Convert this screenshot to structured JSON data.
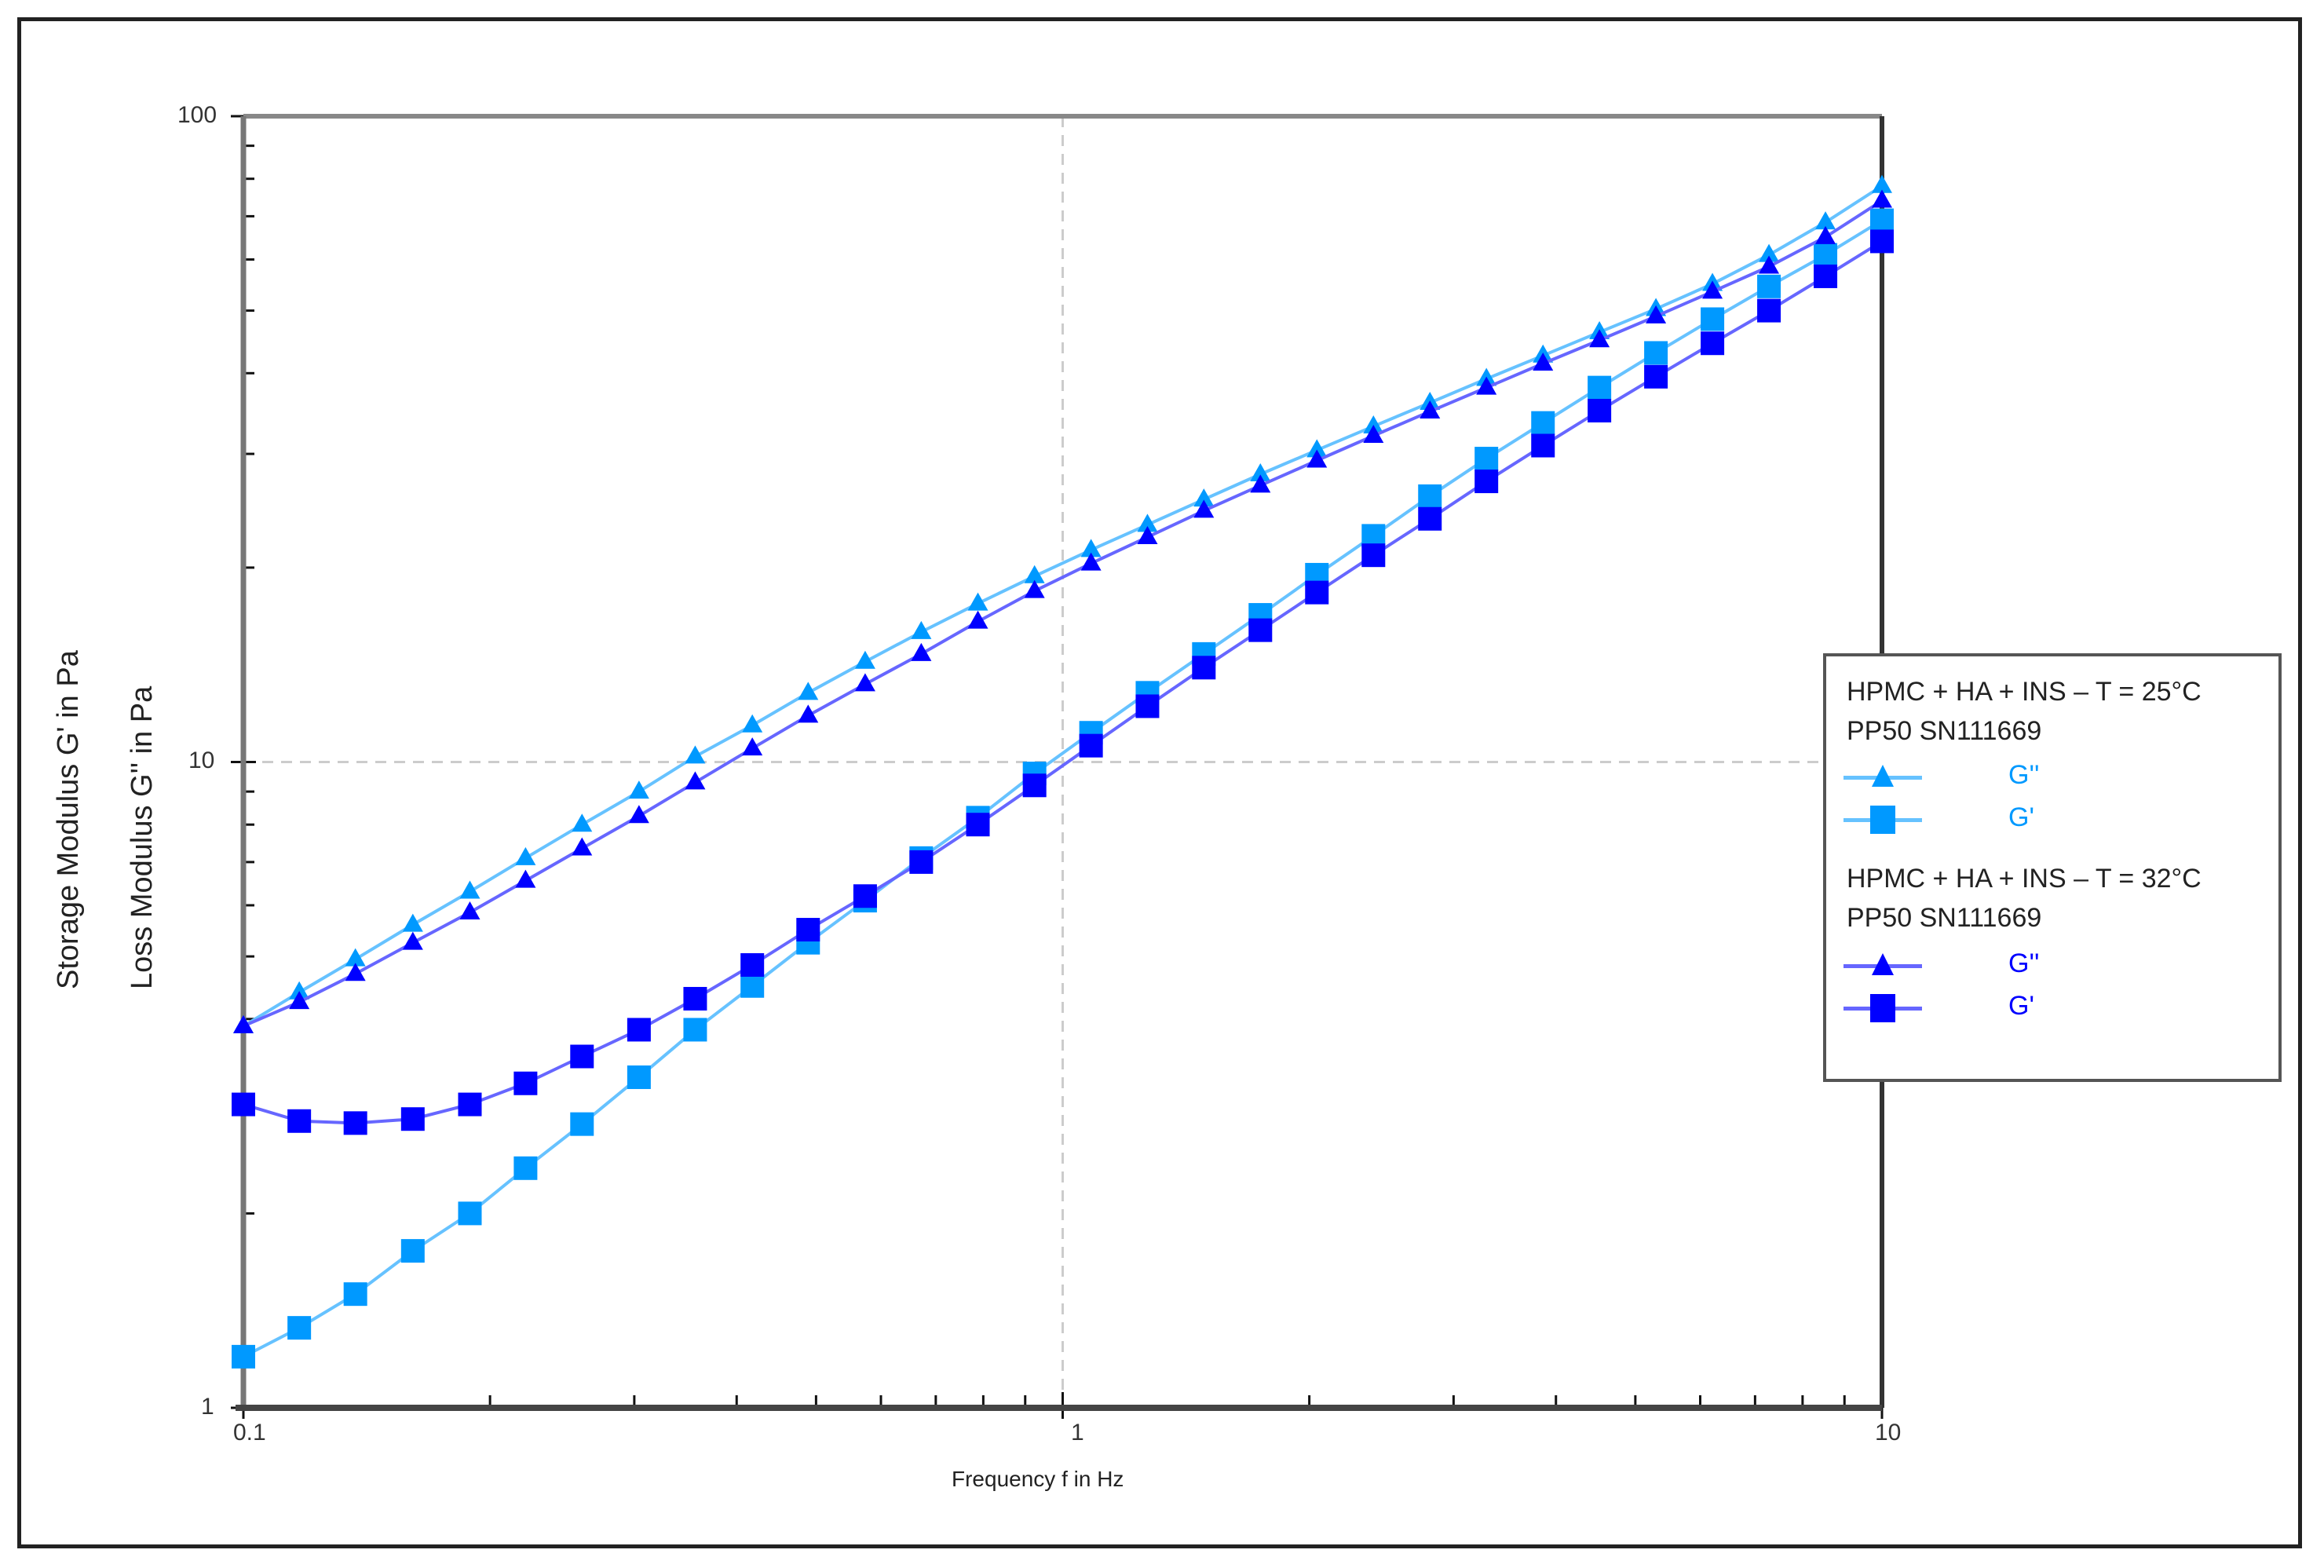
{
  "chart_data": {
    "type": "line",
    "title": "",
    "xlabel": "Frequency  f  in Hz",
    "ylabel_outer": "Storage Modulus  G'  in Pa",
    "ylabel_inner": "Loss Modulus  G''  in Pa",
    "xscale": "log",
    "yscale": "log",
    "xlim": [
      0.1,
      10
    ],
    "ylim": [
      1,
      100
    ],
    "x_ticks": [
      "0.1",
      "1",
      "10"
    ],
    "y_ticks": [
      "1",
      "10",
      "100"
    ],
    "grid": "dashed at major decades",
    "legend_position": "right, outside plot",
    "x": [
      0.1,
      0.117,
      0.137,
      0.161,
      0.189,
      0.221,
      0.259,
      0.304,
      0.356,
      0.418,
      0.489,
      0.574,
      0.672,
      0.788,
      0.924,
      1.083,
      1.269,
      1.487,
      1.743,
      2.043,
      2.395,
      2.807,
      3.29,
      3.857,
      4.52,
      5.298,
      6.21,
      7.279,
      8.532,
      10.0
    ],
    "series": [
      {
        "name": "HPMC + HA + INS – T = 25°C, G''",
        "group": "T = 25°C",
        "marker": "triangle",
        "color": "#0099ff",
        "values": [
          3.9,
          4.4,
          4.95,
          5.6,
          6.3,
          7.1,
          8.0,
          9.0,
          10.2,
          11.4,
          12.8,
          14.3,
          15.9,
          17.6,
          19.4,
          21.3,
          23.3,
          25.5,
          27.9,
          30.4,
          33.1,
          36.0,
          39.2,
          42.6,
          46.3,
          50.3,
          55.0,
          61.0,
          68.5,
          78.0
        ]
      },
      {
        "name": "HPMC + HA + INS – T = 25°C, G'",
        "group": "T = 25°C",
        "marker": "square",
        "color": "#0099ff",
        "values": [
          1.2,
          1.33,
          1.5,
          1.75,
          2.0,
          2.35,
          2.75,
          3.25,
          3.85,
          4.5,
          5.25,
          6.1,
          7.1,
          8.2,
          9.6,
          11.1,
          12.8,
          14.7,
          16.9,
          19.5,
          22.4,
          25.8,
          29.5,
          33.5,
          38.0,
          43.0,
          48.5,
          54.5,
          61.0,
          69.0
        ]
      },
      {
        "name": "HPMC + HA + INS – T = 32°C, G''",
        "group": "T = 32°C",
        "marker": "triangle",
        "color": "#0000ff",
        "values": [
          3.9,
          4.25,
          4.7,
          5.25,
          5.85,
          6.55,
          7.35,
          8.25,
          9.3,
          10.5,
          11.8,
          13.2,
          14.7,
          16.5,
          18.4,
          20.3,
          22.3,
          24.5,
          26.8,
          29.3,
          32.0,
          34.9,
          38.0,
          41.4,
          45.0,
          49.0,
          53.5,
          58.5,
          65.0,
          74.0
        ]
      },
      {
        "name": "HPMC + HA + INS – T = 32°C, G'",
        "group": "T = 32°C",
        "marker": "square",
        "color": "#0000ff",
        "values": [
          2.95,
          2.78,
          2.76,
          2.8,
          2.95,
          3.18,
          3.5,
          3.85,
          4.3,
          4.85,
          5.5,
          6.2,
          7.0,
          8.0,
          9.2,
          10.6,
          12.2,
          14.0,
          16.0,
          18.3,
          20.9,
          23.8,
          27.2,
          30.9,
          35.0,
          39.5,
          44.5,
          50.0,
          56.5,
          64.0
        ]
      }
    ]
  },
  "axes": {
    "y_ticks": [
      {
        "label": "100",
        "value": 100
      },
      {
        "label": "10",
        "value": 10
      },
      {
        "label": "1",
        "value": 1
      }
    ],
    "x_ticks": [
      {
        "label": "0.1",
        "value": 0.1
      },
      {
        "label": "1",
        "value": 1
      },
      {
        "label": "10",
        "value": 10
      }
    ],
    "xlabel": "Frequency  f  in Hz",
    "ylabel_outer": "Storage Modulus  G'  in Pa",
    "ylabel_inner": "Loss Modulus  G''  in Pa"
  },
  "legend": {
    "groups": [
      {
        "title_line1": "HPMC + HA + INS – T = 25°C",
        "title_line2": "PP50 SN111669",
        "color": "#0099ff",
        "line_color": "#66c2ff",
        "items": [
          {
            "label": "G''",
            "marker": "triangle"
          },
          {
            "label": "G'",
            "marker": "square"
          }
        ]
      },
      {
        "title_line1": "HPMC + HA + INS – T = 32°C",
        "title_line2": "PP50 SN111669",
        "color": "#0000ff",
        "line_color": "#6666ff",
        "items": [
          {
            "label": "G''",
            "marker": "triangle"
          },
          {
            "label": "G'",
            "marker": "square"
          }
        ]
      }
    ]
  }
}
